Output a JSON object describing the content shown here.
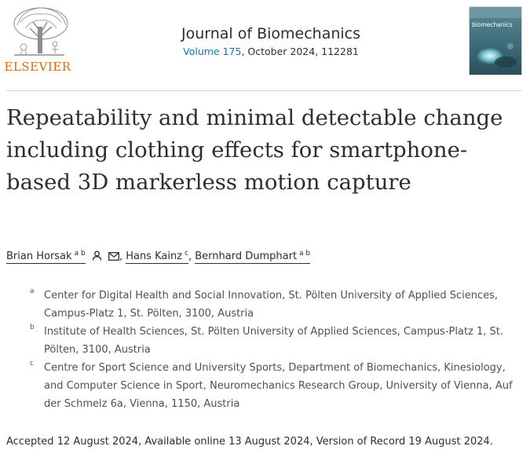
{
  "header": {
    "publisher": "ELSEVIER",
    "journal_title": "Journal of Biomechanics",
    "volume": "Volume 175",
    "issue_info": ", October 2024, 112281",
    "cover_journal_name": "biomechanics"
  },
  "article": {
    "title": "Repeatability and minimal detectable change including clothing effects for smartphone-based 3D markerless motion capture"
  },
  "authors": [
    {
      "name": "Brian Horsak",
      "sup": "a b"
    },
    {
      "name": "Hans Kainz",
      "sup": "c"
    },
    {
      "name": "Bernhard Dumphart",
      "sup": "a b"
    }
  ],
  "affiliations": [
    {
      "label": "a",
      "text": "Center for Digital Health and Social Innovation, St. Pölten University of Applied Sciences, Campus-Platz 1, St. Pölten, 3100, Austria"
    },
    {
      "label": "b",
      "text": "Institute of Health Sciences, St. Pölten University of Applied Sciences, Campus-Platz 1, St. Pölten, 3100, Austria"
    },
    {
      "label": "c",
      "text": "Centre for Sport Science and University Sports, Department of Biomechanics, Kinesiology, and Computer Science in Sport, Neuromechanics Research Group, University of Vienna, Auf der Schmelz 6a, Vienna, 1150, Austria"
    }
  ],
  "dates": "Accepted 12 August 2024, Available online 13 August 2024, Version of Record 19 August 2024.",
  "icons": {
    "author_profile": "person-icon",
    "author_email": "mail-icon"
  },
  "colors": {
    "link": "#0c7dbb",
    "publisher_orange": "#eb6500"
  }
}
